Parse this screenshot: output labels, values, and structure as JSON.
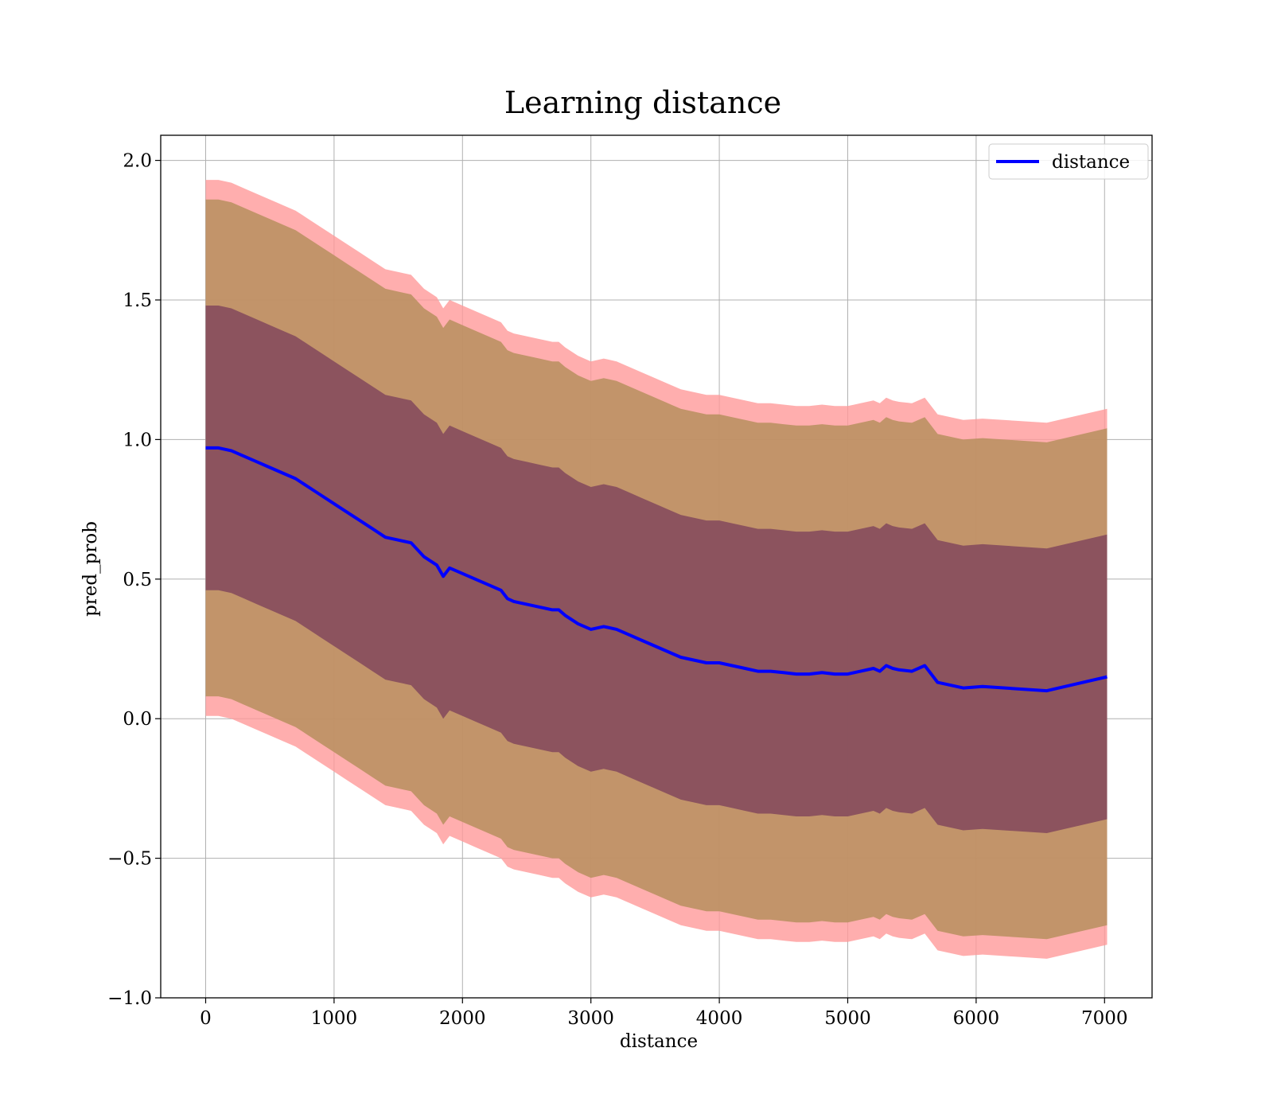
{
  "chart_data": {
    "type": "line",
    "title": "Learning distance",
    "xlabel": "distance",
    "ylabel": "pred_prob",
    "xlim": [
      -350,
      7370
    ],
    "ylim": [
      -1.0,
      2.09
    ],
    "xticks": [
      0,
      1000,
      2000,
      3000,
      4000,
      5000,
      6000,
      7000
    ],
    "yticks": [
      -1.0,
      -0.5,
      0.0,
      0.5,
      1.0,
      1.5,
      2.0
    ],
    "xtick_labels": [
      "0",
      "1000",
      "2000",
      "3000",
      "4000",
      "5000",
      "6000",
      "7000"
    ],
    "ytick_labels": [
      "−1.0",
      "−0.5",
      "0.0",
      "0.5",
      "1.0",
      "1.5",
      "2.0"
    ],
    "grid": true,
    "legend": {
      "placement": "top-right",
      "entries": [
        "distance"
      ]
    },
    "colors": {
      "line": "#0000ff",
      "band_outer": "#ff9a9a",
      "band_middle": "#b78f5e",
      "band_inner": "#7a3e5b"
    },
    "x": [
      0,
      100,
      200,
      300,
      400,
      500,
      600,
      700,
      800,
      900,
      1000,
      1100,
      1200,
      1300,
      1400,
      1500,
      1600,
      1700,
      1800,
      1850,
      1900,
      2000,
      2100,
      2200,
      2300,
      2350,
      2400,
      2500,
      2600,
      2700,
      2750,
      2800,
      2900,
      3000,
      3100,
      3200,
      3300,
      3400,
      3500,
      3600,
      3700,
      3800,
      3900,
      4000,
      4100,
      4200,
      4300,
      4400,
      4500,
      4600,
      4700,
      4800,
      4900,
      5000,
      5100,
      5200,
      5250,
      5300,
      5350,
      5400,
      5500,
      5600,
      5700,
      5900,
      6050,
      6550,
      7020
    ],
    "series": [
      {
        "name": "distance",
        "values": [
          0.97,
          0.97,
          0.96,
          0.94,
          0.92,
          0.9,
          0.88,
          0.86,
          0.83,
          0.8,
          0.77,
          0.74,
          0.71,
          0.68,
          0.65,
          0.64,
          0.63,
          0.58,
          0.55,
          0.51,
          0.54,
          0.52,
          0.5,
          0.48,
          0.46,
          0.43,
          0.42,
          0.41,
          0.4,
          0.39,
          0.39,
          0.37,
          0.34,
          0.32,
          0.33,
          0.32,
          0.3,
          0.28,
          0.26,
          0.24,
          0.22,
          0.21,
          0.2,
          0.2,
          0.19,
          0.18,
          0.17,
          0.17,
          0.165,
          0.16,
          0.16,
          0.165,
          0.16,
          0.16,
          0.17,
          0.18,
          0.17,
          0.19,
          0.18,
          0.175,
          0.17,
          0.19,
          0.13,
          0.11,
          0.115,
          0.1,
          0.15
        ]
      }
    ],
    "band_offsets": {
      "outer": 0.96,
      "middle": 0.89,
      "inner": 0.51
    }
  }
}
